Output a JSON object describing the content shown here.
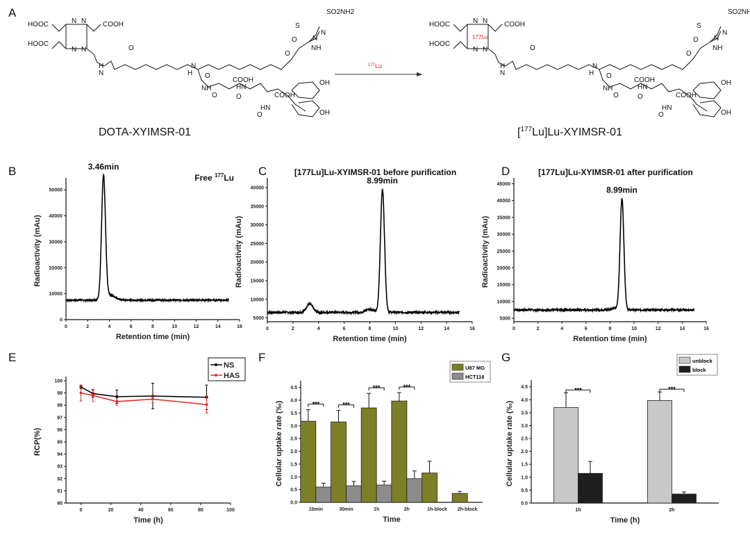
{
  "panels": {
    "A": "A",
    "B": "B",
    "C": "C",
    "D": "D",
    "E": "E",
    "F": "F",
    "G": "G"
  },
  "scheme": {
    "reactant_name": "DOTA-XYIMSR-01",
    "product_name": "[177Lu]Lu-XYIMSR-01",
    "product_name_parts": [
      "[",
      "177",
      "Lu]Lu-XYIMSR-01"
    ],
    "reagent_parts": [
      "177",
      "Lu"
    ],
    "reagent_color": "#e0241b",
    "atoms": [
      "HOOC",
      "COOH",
      "HOOC",
      "N",
      "N",
      "N",
      "N",
      "SO2NH2",
      "S",
      "N",
      "N",
      "NH",
      "H",
      "N",
      "O",
      "O",
      "N",
      "H",
      "NH",
      "O",
      "COOH",
      "O",
      "COOH",
      "OH",
      "OH",
      "HN",
      "HN",
      "O",
      "O",
      "O"
    ],
    "chelated_metal": "177Lu"
  },
  "chart_data": [
    {
      "id": "B",
      "type": "line",
      "title_parts": [
        "Free ",
        "177",
        "Lu"
      ],
      "peak_label": "3.46min",
      "xlabel": "Retention time (min)",
      "ylabel": "Radioactivity (mAu)",
      "xlim": [
        0,
        16
      ],
      "xticks": [
        0,
        2,
        4,
        6,
        8,
        10,
        12,
        14,
        16
      ],
      "ylim": [
        0,
        53000
      ],
      "yticks": [
        0,
        10000,
        20000,
        30000,
        40000,
        50000
      ],
      "baseline": 7500,
      "x_end": 15,
      "peaks": [
        {
          "t": 3.46,
          "height": 47000,
          "width": 0.18
        },
        {
          "t": 4.0,
          "height": 2000,
          "width": 0.5
        }
      ],
      "color": "#000000"
    },
    {
      "id": "C",
      "type": "line",
      "title": "[177Lu]Lu-XYIMSR-01 before purification",
      "peak_label": "8.99min",
      "xlabel": "Retention time (min)",
      "ylabel": "Radioactivity (mAu)",
      "xlim": [
        0,
        16
      ],
      "xticks": [
        0,
        2,
        4,
        6,
        8,
        10,
        12,
        14,
        16
      ],
      "ylim": [
        4000,
        41500
      ],
      "yticks": [
        5000,
        10000,
        15000,
        20000,
        25000,
        30000,
        35000,
        40000
      ],
      "baseline": 6500,
      "x_end": 15,
      "peaks": [
        {
          "t": 3.3,
          "height": 2300,
          "width": 0.25
        },
        {
          "t": 8.0,
          "height": 900,
          "width": 0.3
        },
        {
          "t": 8.99,
          "height": 33000,
          "width": 0.16
        }
      ],
      "color": "#000000"
    },
    {
      "id": "D",
      "type": "line",
      "title": "[177Lu]Lu-XYIMSR-01 after purification",
      "peak_label": "8.99min",
      "xlabel": "Retention time (min)",
      "ylabel": "Radioactivity (mAu)",
      "xlim": [
        0,
        16
      ],
      "xticks": [
        0,
        2,
        4,
        6,
        8,
        10,
        12,
        14,
        16
      ],
      "ylim": [
        4000,
        45500
      ],
      "yticks": [
        5000,
        10000,
        15000,
        20000,
        25000,
        30000,
        35000,
        40000,
        45000
      ],
      "baseline": 7500,
      "x_end": 15,
      "peaks": [
        {
          "t": 8.99,
          "height": 33000,
          "width": 0.16
        },
        {
          "t": 8.3,
          "height": 500,
          "width": 0.3
        }
      ],
      "color": "#000000"
    },
    {
      "id": "E",
      "type": "line",
      "xlabel": "Time (h)",
      "ylabel": "RCP(%)",
      "xlim": [
        -10,
        100
      ],
      "xticks": [
        0,
        20,
        40,
        60,
        80,
        100
      ],
      "ylim": [
        90,
        100
      ],
      "yticks": [
        90,
        91,
        92,
        93,
        94,
        95,
        96,
        97,
        98,
        99,
        100
      ],
      "legend": "top-right",
      "series": [
        {
          "name": "NS",
          "color": "#000000",
          "x": [
            0,
            8,
            24,
            48,
            84
          ],
          "y": [
            99.5,
            98.95,
            98.7,
            98.75,
            98.65
          ],
          "err": [
            0.15,
            0.3,
            0.55,
            1.05,
            1.0
          ]
        },
        {
          "name": "HAS",
          "color": "#e8302a",
          "x": [
            0,
            8,
            24,
            48,
            84
          ],
          "y": [
            99.0,
            98.8,
            98.3,
            98.5,
            98.05
          ],
          "err": [
            0.65,
            0.5,
            0.3,
            0.3,
            0.7
          ]
        }
      ]
    },
    {
      "id": "F",
      "type": "bar",
      "xlabel": "Time",
      "ylabel": "Cellular uptake rate (‰)",
      "ylim": [
        0,
        4.6
      ],
      "yticks": [
        0,
        0.5,
        1.0,
        1.5,
        2.0,
        2.5,
        3.0,
        3.5,
        4.0,
        4.5
      ],
      "legend": "top-right",
      "categories": [
        "10min",
        "30min",
        "1h",
        "2h",
        "1h-block",
        "2h-block"
      ],
      "series": [
        {
          "name": "U87 MG",
          "color": "#7c7f25",
          "values": [
            3.18,
            3.15,
            3.7,
            3.97,
            1.15,
            0.35
          ],
          "err": [
            0.45,
            0.45,
            0.57,
            0.33,
            0.46,
            0.08
          ]
        },
        {
          "name": "HCT116",
          "color": "#8c8c8c",
          "values": [
            0.6,
            0.65,
            0.68,
            0.93,
            null,
            null
          ],
          "err": [
            0.15,
            0.17,
            0.15,
            0.3,
            null,
            null
          ]
        }
      ],
      "significance": [
        {
          "category": "10min",
          "label": "***"
        },
        {
          "category": "30min",
          "label": "***"
        },
        {
          "category": "1h",
          "label": "***"
        },
        {
          "category": "2h",
          "label": "***"
        }
      ]
    },
    {
      "id": "G",
      "type": "bar",
      "xlabel": "Time (h)",
      "ylabel": "Cellular uptake rate (‰)",
      "ylim": [
        0,
        4.6
      ],
      "yticks": [
        0,
        0.5,
        1.0,
        1.5,
        2.0,
        2.5,
        3.0,
        3.5,
        4.0,
        4.5
      ],
      "legend": "top-right",
      "categories": [
        "1h",
        "2h"
      ],
      "series": [
        {
          "name": "unblock",
          "color": "#c8c8c8",
          "values": [
            3.7,
            3.97
          ],
          "err": [
            0.57,
            0.33
          ]
        },
        {
          "name": "block",
          "color": "#1e1e1e",
          "values": [
            1.15,
            0.35
          ],
          "err": [
            0.46,
            0.08
          ]
        }
      ],
      "significance": [
        {
          "category": "1h",
          "label": "***"
        },
        {
          "category": "2h",
          "label": "***"
        }
      ]
    }
  ]
}
